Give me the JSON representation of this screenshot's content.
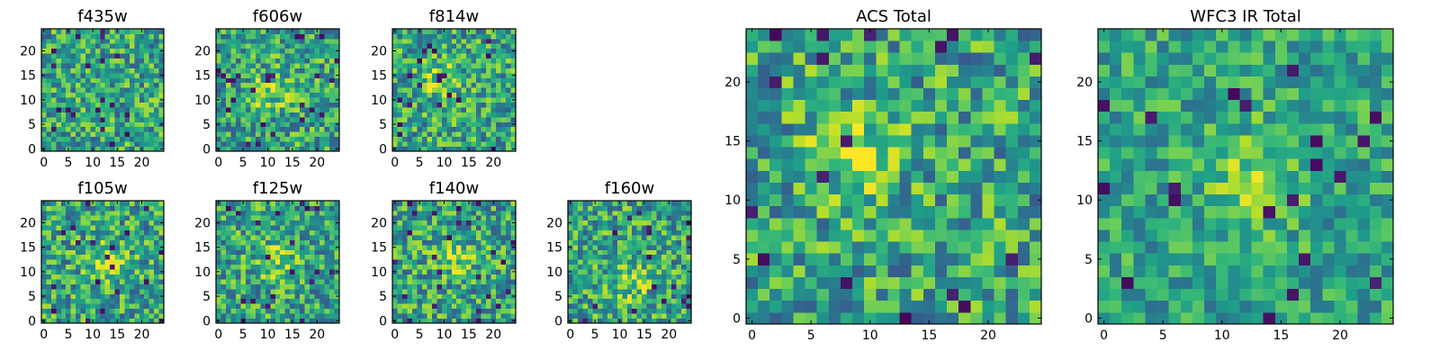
{
  "chart_data": [
    {
      "type": "heatmap",
      "title": "f435w",
      "colormap": "viridis",
      "xlim": [
        0,
        25
      ],
      "ylim": [
        0,
        25
      ],
      "x_ticks": [
        0,
        5,
        10,
        15,
        20
      ],
      "y_ticks": [
        0,
        5,
        10,
        15,
        20
      ],
      "grid": false,
      "legend": "none",
      "seed": 11,
      "noise": 0.3,
      "hot_spot": null
    },
    {
      "type": "heatmap",
      "title": "f606w",
      "colormap": "viridis",
      "xlim": [
        0,
        25
      ],
      "ylim": [
        0,
        25
      ],
      "x_ticks": [
        0,
        5,
        10,
        15,
        20
      ],
      "y_ticks": [
        0,
        5,
        10,
        15,
        20
      ],
      "grid": false,
      "legend": "none",
      "seed": 23,
      "noise": 0.3,
      "hot_spot": [
        11,
        12
      ]
    },
    {
      "type": "heatmap",
      "title": "f814w",
      "colormap": "viridis",
      "xlim": [
        0,
        25
      ],
      "ylim": [
        0,
        25
      ],
      "x_ticks": [
        0,
        5,
        10,
        15,
        20
      ],
      "y_ticks": [
        0,
        5,
        10,
        15,
        20
      ],
      "grid": false,
      "legend": "none",
      "seed": 37,
      "noise": 0.3,
      "hot_spot": [
        9,
        14
      ]
    },
    {
      "type": "heatmap",
      "title": "f105w",
      "colormap": "viridis",
      "xlim": [
        0,
        25
      ],
      "ylim": [
        0,
        25
      ],
      "x_ticks": [
        0,
        5,
        10,
        15,
        20
      ],
      "y_ticks": [
        0,
        5,
        10,
        15,
        20
      ],
      "grid": false,
      "legend": "none",
      "seed": 41,
      "noise": 0.3,
      "hot_spot": [
        13,
        12
      ]
    },
    {
      "type": "heatmap",
      "title": "f125w",
      "colormap": "viridis",
      "xlim": [
        0,
        25
      ],
      "ylim": [
        0,
        25
      ],
      "x_ticks": [
        0,
        5,
        10,
        15,
        20
      ],
      "y_ticks": [
        0,
        5,
        10,
        15,
        20
      ],
      "grid": false,
      "legend": "none",
      "seed": 53,
      "noise": 0.3,
      "hot_spot": [
        12,
        12
      ]
    },
    {
      "type": "heatmap",
      "title": "f140w",
      "colormap": "viridis",
      "xlim": [
        0,
        25
      ],
      "ylim": [
        0,
        25
      ],
      "x_ticks": [
        0,
        5,
        10,
        15,
        20
      ],
      "y_ticks": [
        0,
        5,
        10,
        15,
        20
      ],
      "grid": false,
      "legend": "none",
      "seed": 67,
      "noise": 0.3,
      "hot_spot": [
        12,
        13
      ]
    },
    {
      "type": "heatmap",
      "title": "f160w",
      "colormap": "viridis",
      "xlim": [
        0,
        25
      ],
      "ylim": [
        0,
        25
      ],
      "x_ticks": [
        0,
        5,
        10,
        15,
        20
      ],
      "y_ticks": [
        0,
        5,
        10,
        15,
        20
      ],
      "grid": false,
      "legend": "none",
      "seed": 79,
      "noise": 0.3,
      "hot_spot": [
        12,
        8
      ]
    },
    {
      "type": "heatmap",
      "title": "ACS Total",
      "colormap": "viridis",
      "xlim": [
        0,
        25
      ],
      "ylim": [
        0,
        25
      ],
      "x_ticks": [
        0,
        5,
        10,
        15,
        20
      ],
      "y_ticks": [
        0,
        5,
        10,
        15,
        20
      ],
      "grid": false,
      "legend": "none",
      "seed": 97,
      "noise": 0.3,
      "hot_spot": [
        9,
        14
      ]
    },
    {
      "type": "heatmap",
      "title": "WFC3 IR Total",
      "colormap": "viridis",
      "xlim": [
        0,
        25
      ],
      "ylim": [
        0,
        25
      ],
      "x_ticks": [
        0,
        5,
        10,
        15,
        20
      ],
      "y_ticks": [
        0,
        5,
        10,
        15,
        20
      ],
      "grid": false,
      "legend": "none",
      "seed": 131,
      "noise": 0.22,
      "hot_spot": [
        13,
        12
      ]
    }
  ]
}
